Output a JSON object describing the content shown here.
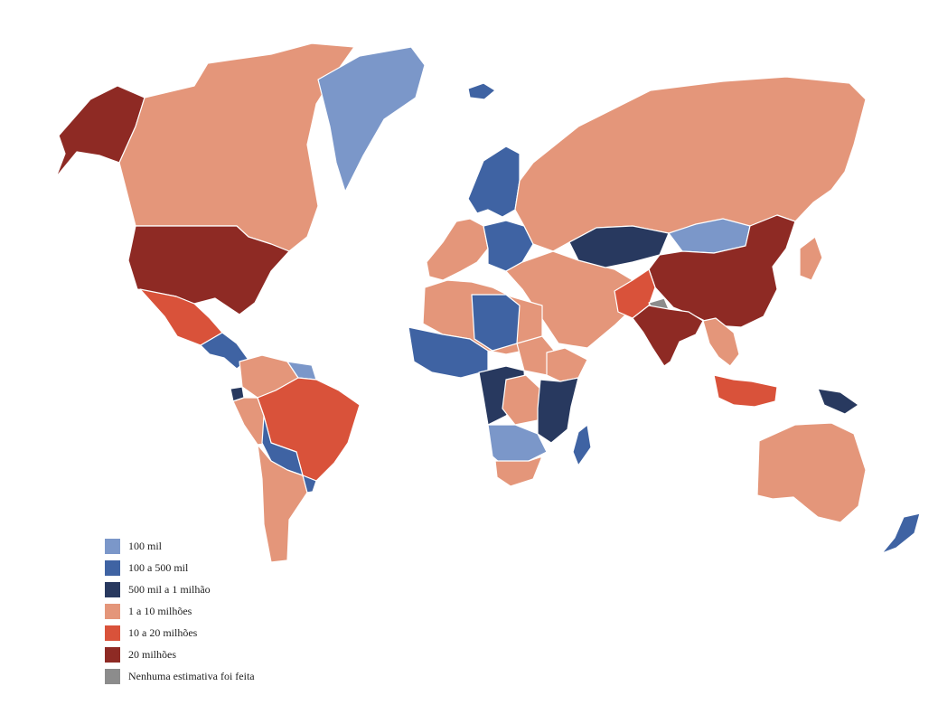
{
  "colors": {
    "background": "#ffffff",
    "border": "#ffffff",
    "category_1": "#7b97c9",
    "category_2": "#3f63a3",
    "category_3": "#28395f",
    "category_4": "#e4967a",
    "category_5": "#d9523a",
    "category_6": "#8e2a24",
    "no_estimate": "#8c8c8c"
  },
  "legend": {
    "items": [
      {
        "label": "100 mil",
        "color": "#7b97c9"
      },
      {
        "label": "100 a 500 mil",
        "color": "#3f63a3"
      },
      {
        "label": "500 mil a 1 milhão",
        "color": "#28395f"
      },
      {
        "label": "1 a 10 milhões",
        "color": "#e4967a"
      },
      {
        "label": "10 a 20 milhões",
        "color": "#d9523a"
      },
      {
        "label": "20 milhões",
        "color": "#8e2a24"
      },
      {
        "label": "Nenhuma estimativa foi feita",
        "color": "#8c8c8c"
      }
    ]
  },
  "map": {
    "type": "choropleth-world",
    "regions": [
      {
        "region": "Alaska",
        "category": "20 milhões"
      },
      {
        "region": "Canada",
        "category": "1 a 10 milhões"
      },
      {
        "region": "Greenland",
        "category": "100 mil"
      },
      {
        "region": "United States",
        "category": "20 milhões"
      },
      {
        "region": "Mexico",
        "category": "10 a 20 milhões"
      },
      {
        "region": "Central America",
        "category": "100 a 500 mil"
      },
      {
        "region": "Colombia / Venezuela",
        "category": "1 a 10 milhões"
      },
      {
        "region": "Guianas",
        "category": "100 mil"
      },
      {
        "region": "Ecuador",
        "category": "500 mil a 1 milhão"
      },
      {
        "region": "Peru",
        "category": "1 a 10 milhões"
      },
      {
        "region": "Brazil",
        "category": "10 a 20 milhões"
      },
      {
        "region": "Bolivia / Paraguay",
        "category": "100 a 500 mil"
      },
      {
        "region": "Argentina / Chile",
        "category": "1 a 10 milhões"
      },
      {
        "region": "Uruguay",
        "category": "100 a 500 mil"
      },
      {
        "region": "Iceland",
        "category": "100 a 500 mil"
      },
      {
        "region": "Scandinavia",
        "category": "100 a 500 mil"
      },
      {
        "region": "Russia",
        "category": "1 a 10 milhões"
      },
      {
        "region": "Western Europe",
        "category": "1 a 10 milhões"
      },
      {
        "region": "Central Europe",
        "category": "100 a 500 mil"
      },
      {
        "region": "Kazakhstan",
        "category": "500 mil a 1 milhão"
      },
      {
        "region": "Mongolia",
        "category": "100 mil"
      },
      {
        "region": "China",
        "category": "20 milhões"
      },
      {
        "region": "India",
        "category": "20 milhões"
      },
      {
        "region": "Pakistan",
        "category": "10 a 20 milhões"
      },
      {
        "region": "Nepal",
        "category": "Nenhuma estimativa foi feita"
      },
      {
        "region": "Middle East",
        "category": "1 a 10 milhões"
      },
      {
        "region": "North Africa",
        "category": "1 a 10 milhões"
      },
      {
        "region": "Libya / Niger",
        "category": "100 a 500 mil"
      },
      {
        "region": "West Africa",
        "category": "100 a 500 mil"
      },
      {
        "region": "Sudan",
        "category": "1 a 10 milhões"
      },
      {
        "region": "Ethiopia / Horn",
        "category": "1 a 10 milhões"
      },
      {
        "region": "Central Africa",
        "category": "500 mil a 1 milhão"
      },
      {
        "region": "DR Congo",
        "category": "1 a 10 milhões"
      },
      {
        "region": "East Africa",
        "category": "500 mil a 1 milhão"
      },
      {
        "region": "Southern Africa",
        "category": "100 mil"
      },
      {
        "region": "South Africa",
        "category": "1 a 10 milhões"
      },
      {
        "region": "Madagascar",
        "category": "100 a 500 mil"
      },
      {
        "region": "Southeast Asia",
        "category": "1 a 10 milhões"
      },
      {
        "region": "Indonesia",
        "category": "10 a 20 milhões"
      },
      {
        "region": "Papua New Guinea",
        "category": "500 mil a 1 milhão"
      },
      {
        "region": "Japan",
        "category": "1 a 10 milhões"
      },
      {
        "region": "Australia",
        "category": "1 a 10 milhões"
      },
      {
        "region": "New Zealand",
        "category": "100 a 500 mil"
      }
    ]
  }
}
